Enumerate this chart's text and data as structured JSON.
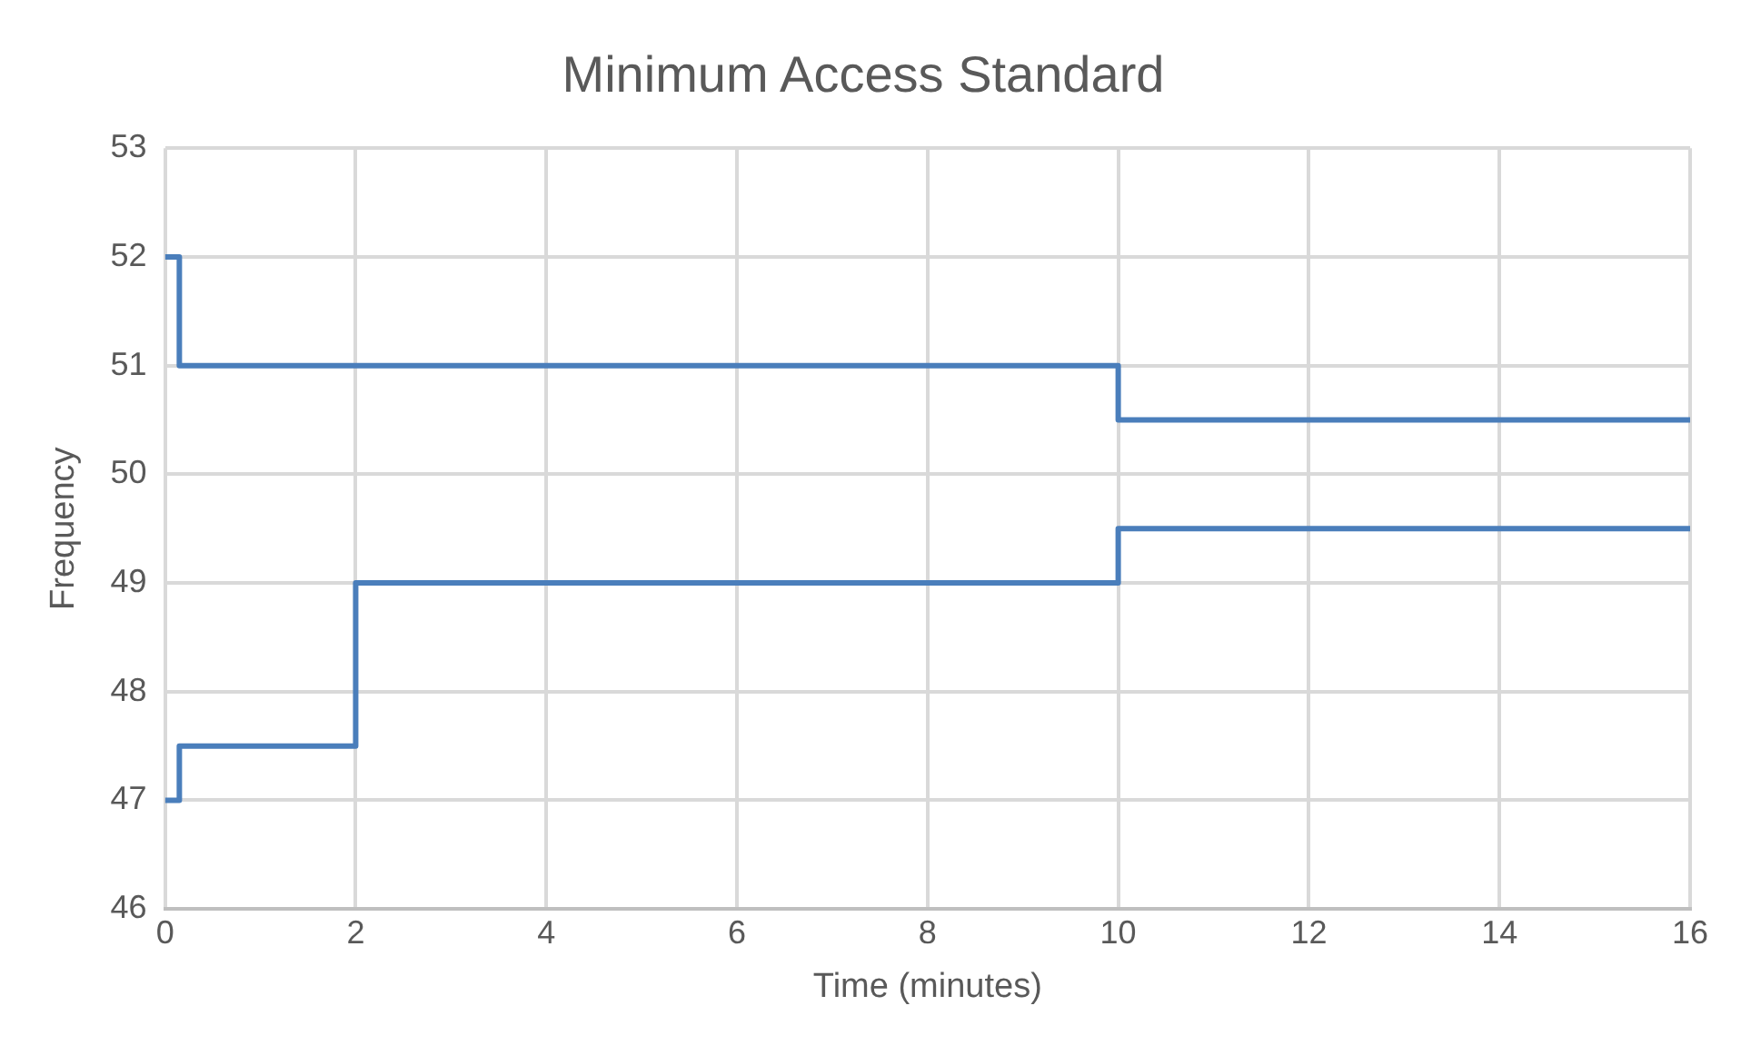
{
  "chart_data": {
    "type": "step",
    "title": "Minimum Access Standard",
    "xlabel": "Time (minutes)",
    "ylabel": "Frequency",
    "series": [
      {
        "color": "#4a7ebb",
        "x": [
          0,
          0.15,
          10,
          16
        ],
        "values": [
          52,
          51,
          50.5,
          50.5
        ]
      },
      {
        "color": "#4a7ebb",
        "x": [
          0,
          0.15,
          2,
          10,
          16
        ],
        "values": [
          47,
          47.5,
          49,
          49.5,
          49.5
        ]
      }
    ],
    "xlim": [
      0,
      16
    ],
    "xticks": [
      0,
      2,
      4,
      6,
      8,
      10,
      12,
      14,
      16
    ],
    "ylim": [
      46,
      53
    ],
    "yticks": [
      46,
      47,
      48,
      49,
      50,
      51,
      52,
      53
    ],
    "grid": true,
    "legend": false,
    "marker": "none",
    "line_style": "solid"
  }
}
